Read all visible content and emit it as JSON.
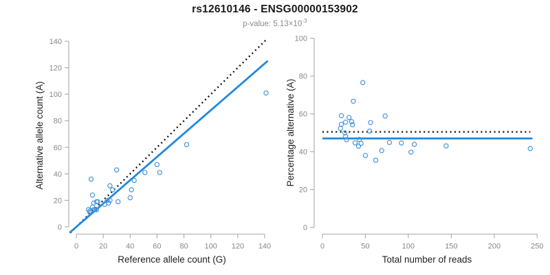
{
  "header": {
    "title": "rs12610146 - ENSG00000153902",
    "subtitle_label": "p-value:",
    "subtitle_value_base": "5.13×10",
    "subtitle_value_exponent": "-3"
  },
  "colors": {
    "fit_line_blue": "#1e88df",
    "point_blue": "#4795db",
    "dotted_line_black": "#111111",
    "axis_gray": "#a8a8a8",
    "tick_label_gray": "#878787",
    "title_black": "#1b1b1b",
    "subtitle_gray": "#8a8a8a"
  },
  "chart_data": {
    "figure_title": "rs12610146 - ENSG00000153902",
    "subtitle": {
      "label": "p-value:",
      "value_base": "5.13×10",
      "value_exponent": "-3"
    },
    "panels": [
      {
        "panel": "left",
        "type": "scatter",
        "xlabel": "Reference allele count (G)",
        "ylabel": "Alternative allele count (A)",
        "xlim": [
          0,
          141
        ],
        "ylim": [
          0,
          141
        ],
        "xticks": [
          0,
          20,
          40,
          60,
          80,
          100,
          120,
          140
        ],
        "yticks": [
          0,
          20,
          40,
          60,
          80,
          100,
          120,
          140
        ],
        "grid": false,
        "legend": false,
        "points": [
          [
            141,
            101
          ],
          [
            82,
            62
          ],
          [
            60,
            47
          ],
          [
            62,
            41
          ],
          [
            51,
            41
          ],
          [
            43,
            35
          ],
          [
            30,
            43
          ],
          [
            41,
            28
          ],
          [
            40,
            22
          ],
          [
            25,
            31
          ],
          [
            27,
            28
          ],
          [
            31,
            19
          ],
          [
            11,
            36
          ],
          [
            25,
            20
          ],
          [
            23,
            20
          ],
          [
            24,
            18
          ],
          [
            21,
            17
          ],
          [
            12,
            24
          ],
          [
            16,
            19
          ],
          [
            15,
            19
          ],
          [
            13,
            18
          ],
          [
            12,
            15
          ],
          [
            13,
            13
          ],
          [
            14,
            13
          ],
          [
            15,
            13
          ],
          [
            10,
            12
          ],
          [
            9,
            13
          ],
          [
            10,
            11
          ]
        ],
        "lines": [
          {
            "name": "identity-line",
            "style": "dotted",
            "color": "black",
            "slope": 1,
            "intercept": 0,
            "x_range": [
              -4.5,
              142
            ]
          },
          {
            "name": "fit-line",
            "style": "solid",
            "color": "blue",
            "slope": 0.88,
            "intercept": 0,
            "x_range": [
              -5,
              142.3
            ]
          }
        ]
      },
      {
        "panel": "right",
        "type": "scatter",
        "xlabel": "Total number of reads",
        "ylabel": "Percentage alternative (A)",
        "xlim": [
          0,
          244
        ],
        "ylim": [
          0,
          100
        ],
        "xticks": [
          0,
          50,
          100,
          150,
          200,
          250
        ],
        "yticks": [
          0,
          20,
          40,
          60,
          80,
          100
        ],
        "grid": false,
        "legend": false,
        "points": [
          [
            242,
            41.7
          ],
          [
            144,
            43.1
          ],
          [
            107,
            43.9
          ],
          [
            103,
            39.8
          ],
          [
            92,
            44.6
          ],
          [
            78,
            44.9
          ],
          [
            73,
            58.9
          ],
          [
            69,
            40.6
          ],
          [
            62,
            35.5
          ],
          [
            56,
            55.4
          ],
          [
            55,
            50.9
          ],
          [
            50,
            38.0
          ],
          [
            47,
            76.6
          ],
          [
            45,
            44.4
          ],
          [
            43,
            46.5
          ],
          [
            42,
            42.9
          ],
          [
            38,
            44.7
          ],
          [
            36,
            66.7
          ],
          [
            35,
            54.3
          ],
          [
            34,
            55.9
          ],
          [
            31,
            58.1
          ],
          [
            27,
            55.6
          ],
          [
            26,
            50.0
          ],
          [
            27,
            48.1
          ],
          [
            28,
            46.4
          ],
          [
            22,
            54.5
          ],
          [
            22,
            59.1
          ],
          [
            21,
            52.4
          ]
        ],
        "lines": [
          {
            "name": "expected-balance-line",
            "style": "dotted",
            "color": "black",
            "y": 50.5,
            "x_range": [
              0,
              242
            ]
          },
          {
            "name": "fit-line",
            "style": "solid",
            "color": "blue",
            "y": 47,
            "x_range": [
              0,
              244.5
            ]
          }
        ]
      }
    ]
  }
}
